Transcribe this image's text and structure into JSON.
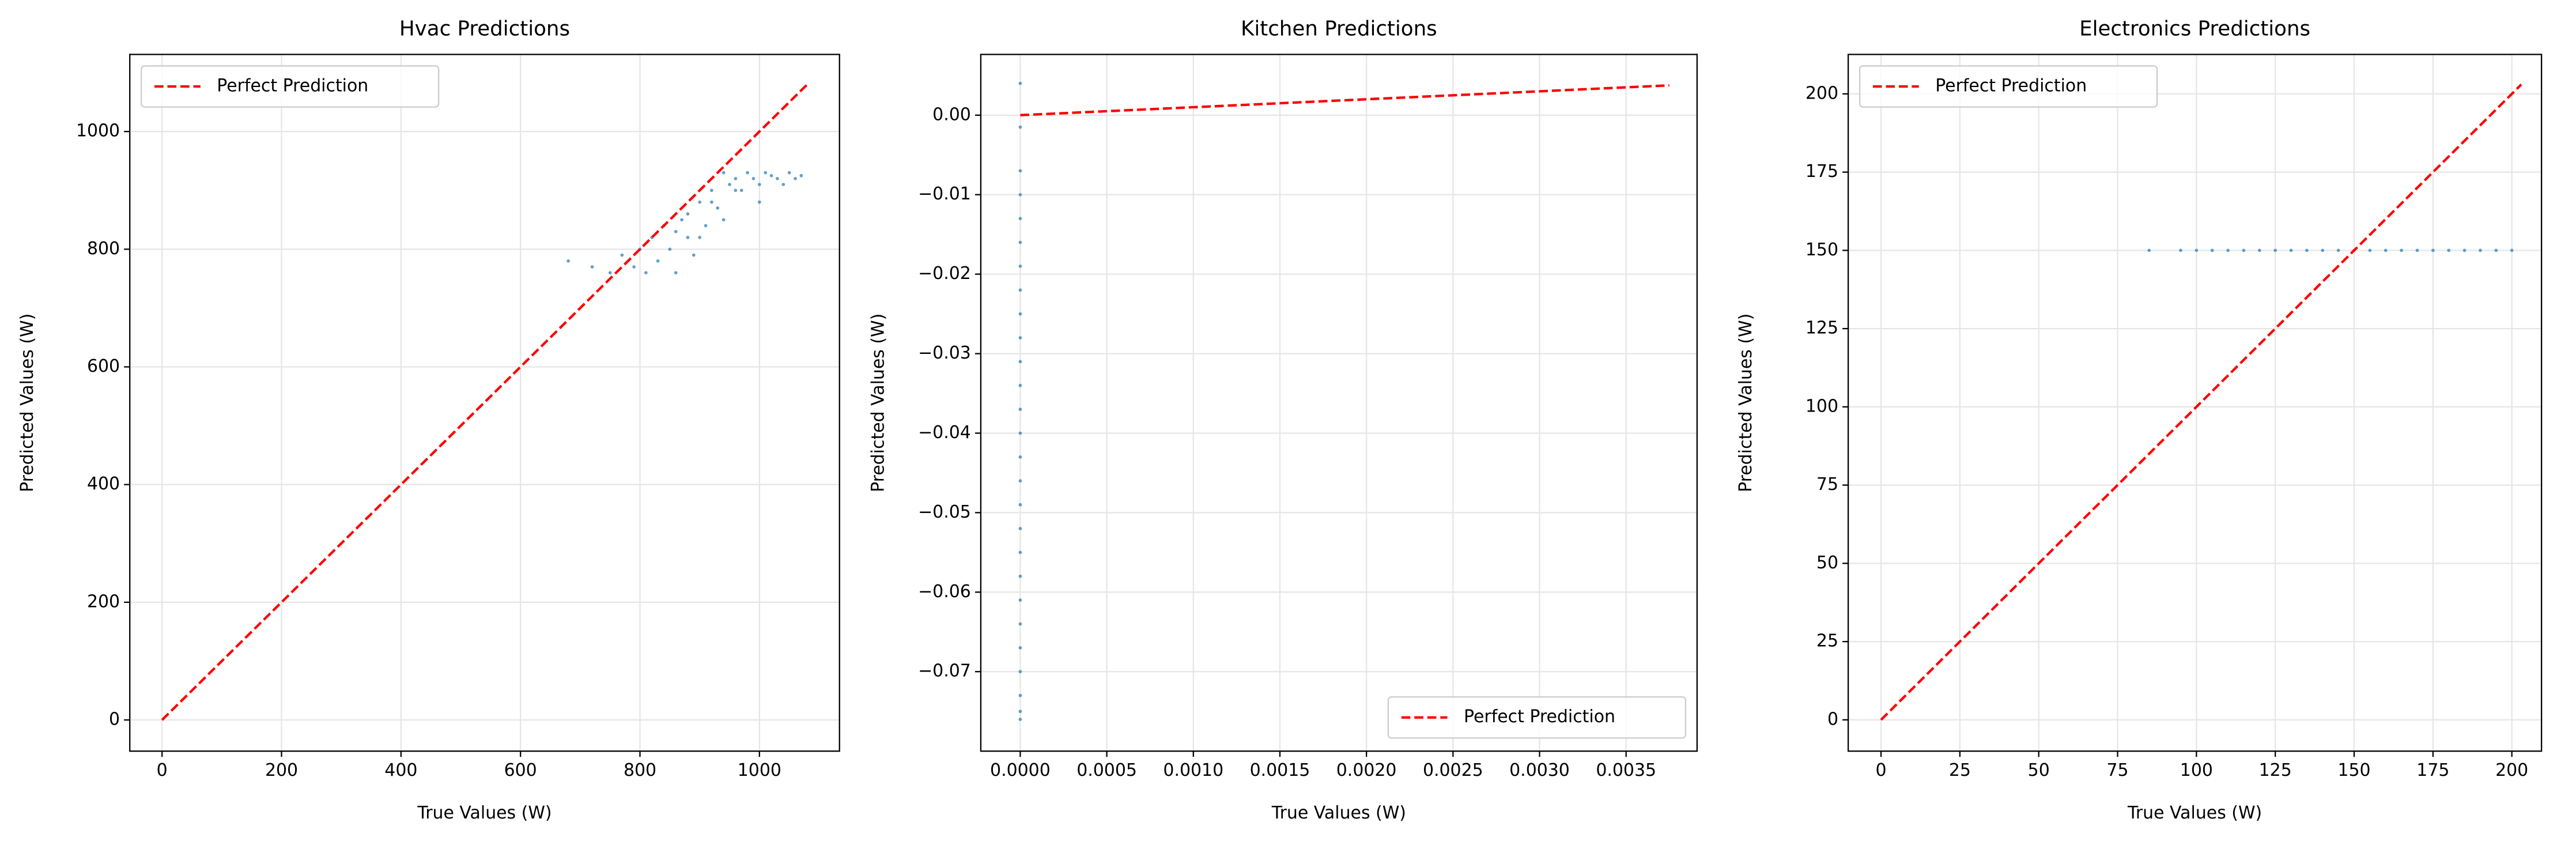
{
  "chart_data": [
    {
      "type": "scatter",
      "title": "Hvac Predictions",
      "xlabel": "True Values (W)",
      "ylabel": "Predicted Values (W)",
      "xlim": [
        -54,
        1134
      ],
      "ylim": [
        -53,
        1131
      ],
      "xticks": [
        0,
        200,
        400,
        600,
        800,
        1000
      ],
      "yticks": [
        0,
        200,
        400,
        600,
        800,
        1000
      ],
      "grid": true,
      "legend_loc": "upper left",
      "points": {
        "color": "#1f77b4",
        "x": [
          680,
          720,
          750,
          770,
          790,
          800,
          810,
          820,
          830,
          840,
          850,
          860,
          870,
          880,
          890,
          900,
          910,
          920,
          930,
          940,
          950,
          960,
          970,
          980,
          990,
          1000,
          1010,
          1020,
          1030,
          1040,
          1050,
          1060,
          1070,
          860,
          880,
          900,
          920,
          940,
          960,
          1000
        ],
        "y": [
          780,
          770,
          760,
          790,
          770,
          800,
          760,
          820,
          780,
          840,
          800,
          760,
          850,
          820,
          790,
          880,
          840,
          900,
          870,
          930,
          910,
          920,
          900,
          930,
          920,
          880,
          930,
          925,
          920,
          910,
          930,
          920,
          925,
          830,
          860,
          820,
          880,
          850,
          900,
          910
        ]
      },
      "series": [
        {
          "name": "Perfect Prediction",
          "color": "#ff0000",
          "x": [
            0,
            1080
          ],
          "values": [
            0,
            1080
          ]
        }
      ]
    },
    {
      "type": "scatter",
      "title": "Kitchen Predictions",
      "xlabel": "True Values (W)",
      "ylabel": "Predicted Values (W)",
      "xlim": [
        -0.000228,
        0.00391
      ],
      "ylim": [
        -0.08,
        0.00764
      ],
      "xticks": [
        {
          "value": 0,
          "label": "0.0000"
        },
        {
          "value": 0.0005,
          "label": "0.0005"
        },
        {
          "value": 0.001,
          "label": "0.0010"
        },
        {
          "value": 0.0015,
          "label": "0.0015"
        },
        {
          "value": 0.002,
          "label": "0.0020"
        },
        {
          "value": 0.0025,
          "label": "0.0025"
        },
        {
          "value": 0.003,
          "label": "0.0030"
        },
        {
          "value": 0.0035,
          "label": "0.0035"
        }
      ],
      "yticks": [
        {
          "value": 0,
          "label": "0.00"
        },
        {
          "value": -0.01,
          "label": "−0.01"
        },
        {
          "value": -0.02,
          "label": "−0.02"
        },
        {
          "value": -0.03,
          "label": "−0.03"
        },
        {
          "value": -0.04,
          "label": "−0.04"
        },
        {
          "value": -0.05,
          "label": "−0.05"
        },
        {
          "value": -0.06,
          "label": "−0.06"
        },
        {
          "value": -0.07,
          "label": "−0.07"
        }
      ],
      "grid": true,
      "legend_loc": "lower right",
      "points": {
        "color": "#1f77b4",
        "x": [
          0,
          0,
          0,
          0,
          0,
          0,
          0,
          0,
          0,
          0,
          0,
          0,
          0,
          0,
          0,
          0,
          0,
          0,
          0,
          0,
          0,
          0,
          0,
          0,
          0,
          0,
          0
        ],
        "y": [
          0.004,
          -0.0015,
          -0.007,
          -0.01,
          -0.013,
          -0.016,
          -0.019,
          -0.022,
          -0.025,
          -0.028,
          -0.031,
          -0.034,
          -0.037,
          -0.04,
          -0.043,
          -0.046,
          -0.049,
          -0.052,
          -0.055,
          -0.058,
          -0.061,
          -0.064,
          -0.067,
          -0.07,
          -0.073,
          -0.075,
          -0.076
        ]
      },
      "series": [
        {
          "name": "Perfect Prediction",
          "color": "#ff0000",
          "x": [
            0,
            0.00375
          ],
          "values": [
            0,
            0.00375
          ]
        }
      ]
    },
    {
      "type": "scatter",
      "title": "Electronics Predictions",
      "xlabel": "True Values (W)",
      "ylabel": "Predicted Values (W)",
      "xlim": [
        -10.4,
        209.4
      ],
      "ylim": [
        -10,
        212.6
      ],
      "xticks": [
        0,
        25,
        50,
        75,
        100,
        125,
        150,
        175,
        200
      ],
      "yticks": [
        0,
        25,
        50,
        75,
        100,
        125,
        150,
        175,
        200
      ],
      "grid": true,
      "legend_loc": "upper left",
      "points": {
        "color": "#1f77b4",
        "x": [
          85,
          95,
          100,
          105,
          110,
          115,
          120,
          125,
          130,
          135,
          140,
          145,
          150,
          155,
          160,
          165,
          170,
          175,
          180,
          185,
          190,
          195,
          200
        ],
        "y": [
          150,
          150,
          150,
          150,
          150,
          150,
          150,
          150,
          150,
          150,
          150,
          150,
          150,
          150,
          150,
          150,
          150,
          150,
          150,
          150,
          150,
          150,
          150
        ]
      },
      "series": [
        {
          "name": "Perfect Prediction",
          "color": "#ff0000",
          "x": [
            0,
            203
          ],
          "values": [
            0,
            203
          ]
        }
      ]
    }
  ]
}
